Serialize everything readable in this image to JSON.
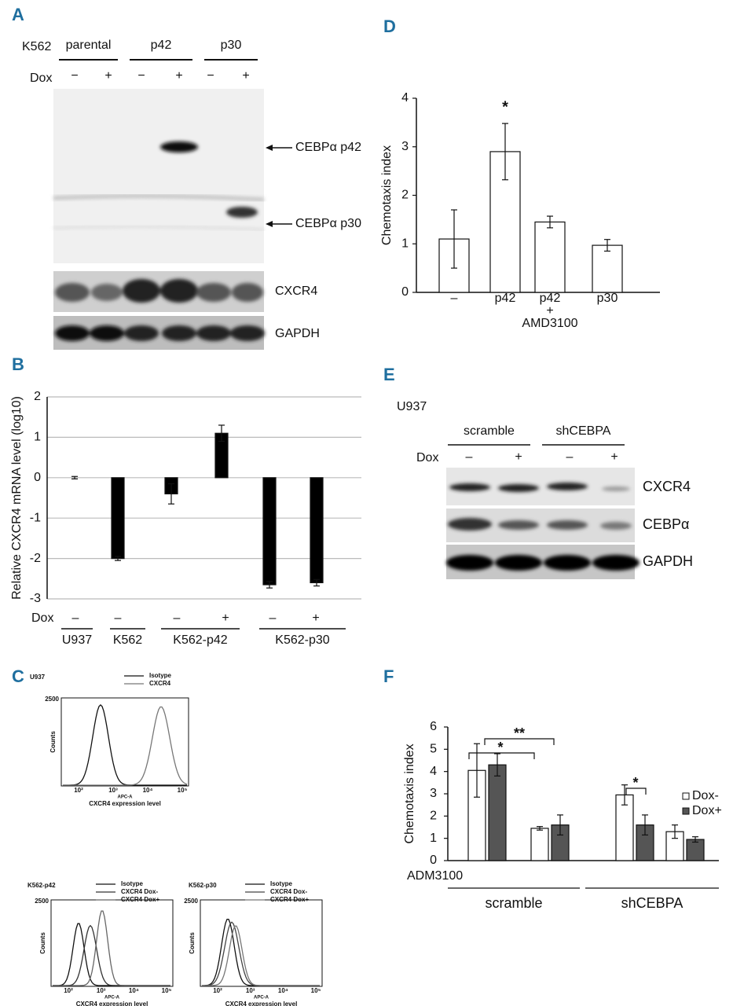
{
  "panels": [
    "A",
    "B",
    "C",
    "D",
    "E",
    "F"
  ],
  "blot_a": {
    "cell_line": "K562",
    "groups": [
      "parental",
      "p42",
      "p30"
    ],
    "dox_label": "Dox",
    "dox": [
      "−",
      "+",
      "−",
      "+",
      "−",
      "+"
    ],
    "arrows": [
      "CEBPα p42",
      "CEBPα p30"
    ],
    "rows": [
      "CXCR4",
      "GAPDH"
    ]
  },
  "blot_e": {
    "cell_line": "U937",
    "groups": [
      "scramble",
      "shCEBPA"
    ],
    "dox_label": "Dox",
    "dox": [
      "–",
      "+",
      "–",
      "+"
    ],
    "rows": [
      "CXCR4",
      "CEBPα",
      "GAPDH"
    ]
  },
  "flow": [
    {
      "title": "U937",
      "legend": [
        "Isotype",
        "CXCR4"
      ],
      "ymax": "2500",
      "ylabel": "Counts",
      "xticks": [
        "10²",
        "10³",
        "10⁴",
        "10⁵"
      ],
      "xaxis": "APC-A",
      "xlabel": "CXCR4 expression level"
    },
    {
      "title": "K562-p42",
      "legend": [
        "Isotype",
        "CXCR4 Dox-",
        "CXCR4 Dox+"
      ],
      "ymax": "2500",
      "ylabel": "Counts",
      "xticks": [
        "10²",
        "10³",
        "10⁴",
        "10⁵"
      ],
      "xaxis": "APC-A",
      "xlabel": "CXCR4 expression level"
    },
    {
      "title": "K562-p30",
      "legend": [
        "Isotype",
        "CXCR4 Dox-",
        "CXCR4 Dox+"
      ],
      "ymax": "2500",
      "ylabel": "Counts",
      "xticks": [
        "10²",
        "10³",
        "10⁴",
        "10⁵"
      ],
      "xaxis": "APC-A",
      "xlabel": "CXCR4 expression level"
    }
  ],
  "chart_data": [
    {
      "type": "bar",
      "ylabel": "Relative CXCR4 mRNA level (log10)",
      "categories": [
        null,
        null,
        null,
        null,
        null,
        null
      ],
      "values": [
        0,
        -2.0,
        -0.4,
        1.1,
        -2.65,
        -2.6
      ],
      "errors": [
        0.03,
        0.05,
        0.25,
        0.2,
        0.08,
        0.08
      ],
      "color": "#000000",
      "ylim": [
        -3,
        2
      ],
      "yticks": [
        -3,
        -2,
        -1,
        0,
        1,
        2
      ],
      "grid": true,
      "dox_label": "Dox",
      "dox": [
        "–",
        "–",
        "–",
        "+",
        "–",
        "+"
      ],
      "groups": [
        "U937",
        "K562",
        "K562-p42",
        "K562-p30"
      ]
    },
    {
      "type": "bar",
      "ylabel": "Chemotaxis index",
      "categories": [
        "–",
        "p42",
        "p42 + AMD3100",
        "p30"
      ],
      "values": [
        1.1,
        2.9,
        1.45,
        0.97
      ],
      "errors": [
        0.6,
        0.58,
        0.12,
        0.12
      ],
      "color": "#ffffff",
      "ylim": [
        0,
        4
      ],
      "yticks": [
        0,
        1,
        2,
        3,
        4
      ],
      "grid": false,
      "annotations": [
        "*"
      ]
    },
    {
      "type": "bar",
      "ylabel": "Chemotaxis index",
      "categories": [
        null,
        null,
        null,
        null
      ],
      "series": [
        {
          "name": "Dox-",
          "color": "#ffffff",
          "values": [
            4.05,
            1.45,
            2.95,
            1.3
          ],
          "errors": [
            1.2,
            0.08,
            0.45,
            0.3
          ]
        },
        {
          "name": "Dox+",
          "color": "#555555",
          "values": [
            4.3,
            1.6,
            1.6,
            0.95
          ],
          "errors": [
            0.5,
            0.45,
            0.45,
            0.12
          ]
        }
      ],
      "ylim": [
        0,
        6
      ],
      "yticks": [
        0,
        1,
        2,
        3,
        4,
        5,
        6
      ],
      "grid": false,
      "legend": "right",
      "annotations": [
        "*",
        "**",
        "*"
      ],
      "row_label": "ADM3100",
      "groups": [
        "scramble",
        "shCEBPA"
      ]
    }
  ]
}
